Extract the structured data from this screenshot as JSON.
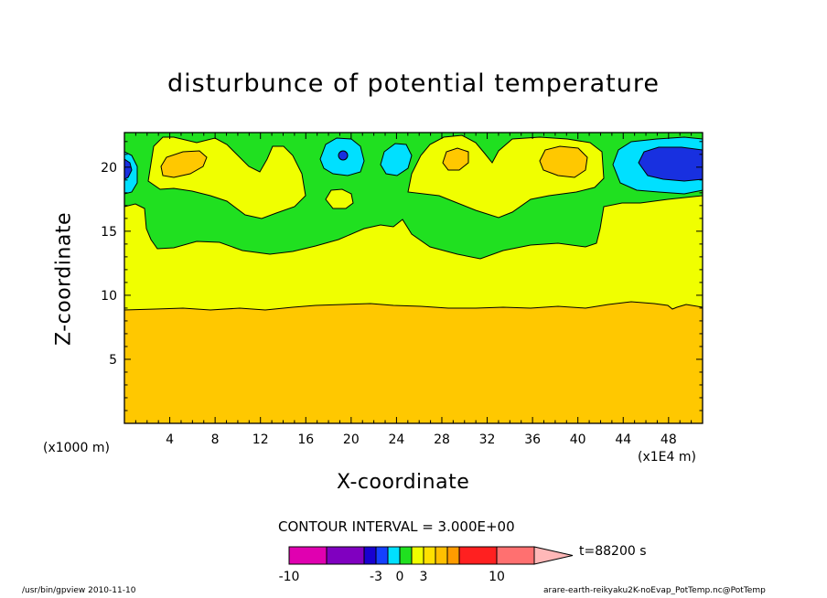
{
  "chart_data": {
    "type": "heatmap",
    "title": "disturbunce of potential temperature",
    "xlabel": "X-coordinate",
    "ylabel": "Z-coordinate",
    "x_unit": "(x1000 m)",
    "x_scale": "(x1E4 m)",
    "xlim": [
      0,
      51
    ],
    "ylim": [
      0,
      22.7
    ],
    "x_ticks": [
      4,
      8,
      12,
      16,
      20,
      24,
      28,
      32,
      36,
      40,
      44,
      48
    ],
    "y_ticks": [
      5,
      10,
      15,
      20
    ],
    "contour_interval": "CONTOUR INTERVAL = 3.000E+00",
    "time": "t=88200 s",
    "levels": [
      -10,
      -3,
      0,
      3,
      10
    ],
    "colorbar_colors": [
      "#e000b0",
      "#8000c0",
      "#1800d0",
      "#1440ff",
      "#00e0ff",
      "#20e020",
      "#f0ff00",
      "#ffe000",
      "#ffc000",
      "#ff9c00",
      "#ff2020",
      "#ff7070",
      "#ffb8b8"
    ],
    "regions": [
      {
        "name": "lower layer",
        "color": "#ffc800",
        "z_top": 9.2
      },
      {
        "name": "middle layer",
        "color": "#f0ff00",
        "z_top": 14.0
      },
      {
        "name": "upper band",
        "color": "#20e020",
        "z_top": 22.7
      }
    ],
    "cool_cells": [
      {
        "x": 19.5,
        "z": 21.0,
        "color": "#00e0ff"
      },
      {
        "x": 24.0,
        "z": 20.8,
        "color": "#00e0ff"
      },
      {
        "x": 48.5,
        "z": 20.5,
        "color": "#1830e0"
      },
      {
        "x": 0.3,
        "z": 20.0,
        "color": "#1830e0"
      }
    ]
  },
  "footer": {
    "left": "/usr/bin/gpview  2010-11-10",
    "right": "arare-earth-reikyaku2K-noEvap_PotTemp.nc@PotTemp"
  }
}
